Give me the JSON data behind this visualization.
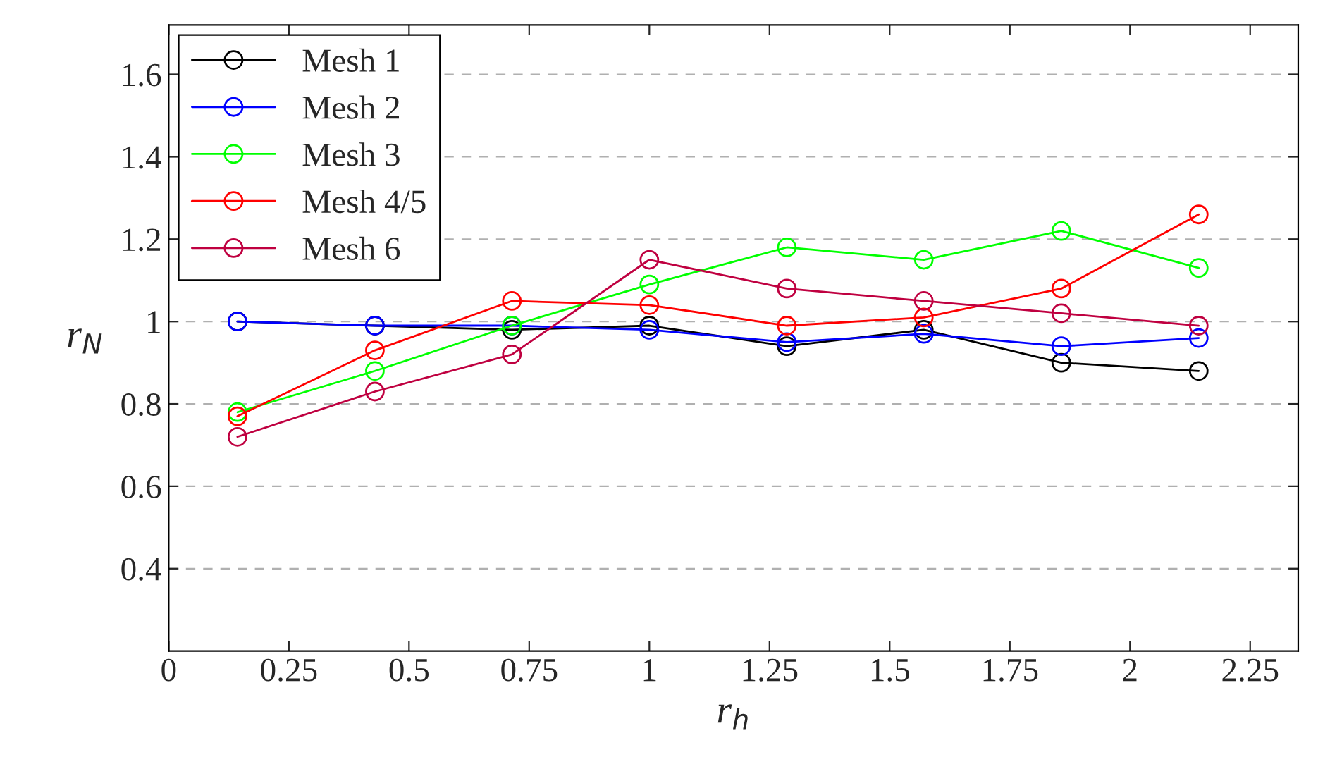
{
  "chart_data": {
    "type": "line",
    "xlabel": "r$_{h}$",
    "ylabel": "r$_{N}$",
    "x": [
      0.143,
      0.429,
      0.714,
      1.0,
      1.286,
      1.571,
      1.857,
      2.143
    ],
    "series": [
      {
        "name": "Mesh 1",
        "color": "#000000",
        "values": [
          1.0,
          0.99,
          0.98,
          0.99,
          0.94,
          0.98,
          0.9,
          0.88
        ]
      },
      {
        "name": "Mesh 2",
        "color": "#0000ff",
        "values": [
          1.0,
          0.99,
          0.99,
          0.98,
          0.95,
          0.97,
          0.94,
          0.96
        ]
      },
      {
        "name": "Mesh 3",
        "color": "#00ff00",
        "values": [
          0.78,
          0.88,
          0.99,
          1.09,
          1.18,
          1.15,
          1.22,
          1.13
        ]
      },
      {
        "name": "Mesh 4/5",
        "color": "#ff0000",
        "values": [
          0.77,
          0.93,
          1.05,
          1.04,
          0.99,
          1.01,
          1.08,
          1.26
        ]
      },
      {
        "name": "Mesh 6",
        "color": "#bf0040",
        "values": [
          0.72,
          0.83,
          0.92,
          1.15,
          1.08,
          1.05,
          1.02,
          0.99
        ]
      }
    ],
    "xlim": [
      0,
      2.35
    ],
    "ylim": [
      0.2,
      1.72
    ],
    "xticks": [
      0,
      0.25,
      0.5,
      0.75,
      1,
      1.25,
      1.5,
      1.75,
      2,
      2.25
    ],
    "yticks": [
      0.4,
      0.6,
      0.8,
      1,
      1.2,
      1.4,
      1.6
    ],
    "grid": "y",
    "legend": "top left",
    "marker": "circle",
    "line_style": "solid"
  }
}
